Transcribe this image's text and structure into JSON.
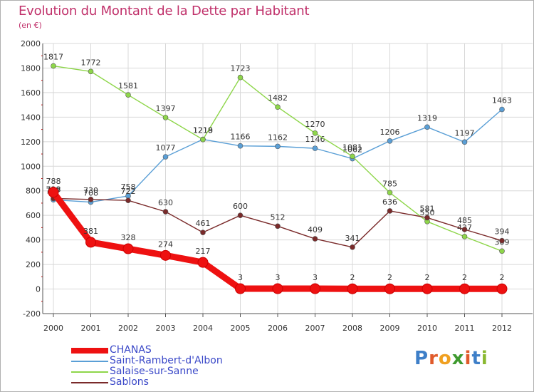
{
  "header": {
    "title": "Evolution du Montant de la Dette par Habitant",
    "subtitle": "(en €)"
  },
  "colors": {
    "title": "#c0306a",
    "legend_text": "#3a48c8",
    "grid": "#d8d8d8",
    "axis": "#555555"
  },
  "logo": {
    "letters": [
      "P",
      "r",
      "o",
      "x",
      "i",
      "t",
      "i"
    ],
    "letter_colors": [
      "#3e7fc8",
      "#e05a2a",
      "#f0a020",
      "#3e9a2e",
      "#e05a2a",
      "#3e7fc8",
      "#8ab830"
    ]
  },
  "chart_data": {
    "type": "line",
    "categories": [
      "2000",
      "2001",
      "2002",
      "2003",
      "2004",
      "2005",
      "2006",
      "2007",
      "2008",
      "2009",
      "2010",
      "2011",
      "2012"
    ],
    "ylim": [
      -200,
      2000
    ],
    "yticks": [
      "-200",
      "0",
      "200",
      "400",
      "600",
      "800",
      "1000",
      "1200",
      "1400",
      "1600",
      "1800",
      "2000"
    ],
    "grid": true,
    "legend_position": "bottom-left",
    "series": [
      {
        "name": "CHANAS",
        "color": "#ee1111",
        "values": [
          788,
          381,
          328,
          274,
          217,
          3,
          3,
          3,
          2,
          2,
          2,
          2,
          2
        ],
        "labels": [
          "788",
          "381",
          "328",
          "274",
          "217",
          "3",
          "3",
          "3",
          "2",
          "2",
          "2",
          "2",
          "2"
        ]
      },
      {
        "name": "Saint-Rambert-d'Albon",
        "color": "#5a9fd6",
        "values": [
          727,
          708,
          758,
          1077,
          1219,
          1166,
          1162,
          1146,
          1062,
          1206,
          1319,
          1197,
          1463
        ],
        "labels": [
          "727",
          "708",
          "758",
          "1077",
          "1219",
          "1166",
          "1162",
          "1146",
          "1062",
          "1206",
          "1319",
          "1197",
          "1463"
        ]
      },
      {
        "name": "Salaise-sur-Sanne",
        "color": "#8ed64a",
        "values": [
          1817,
          1772,
          1581,
          1397,
          1218,
          1723,
          1482,
          1270,
          1081,
          785,
          550,
          427,
          309
        ],
        "labels": [
          "1817",
          "1772",
          "1581",
          "1397",
          "1218",
          "1723",
          "1482",
          "1270",
          "1081",
          "785",
          "550",
          "427",
          "309"
        ]
      },
      {
        "name": "Sablons",
        "color": "#7a2a2a",
        "values": [
          738,
          730,
          722,
          630,
          461,
          600,
          512,
          409,
          341,
          636,
          581,
          485,
          394
        ],
        "labels": [
          "738",
          "730",
          "722",
          "630",
          "461",
          "600",
          "512",
          "409",
          "341",
          "636",
          "581",
          "485",
          "394"
        ]
      }
    ]
  }
}
